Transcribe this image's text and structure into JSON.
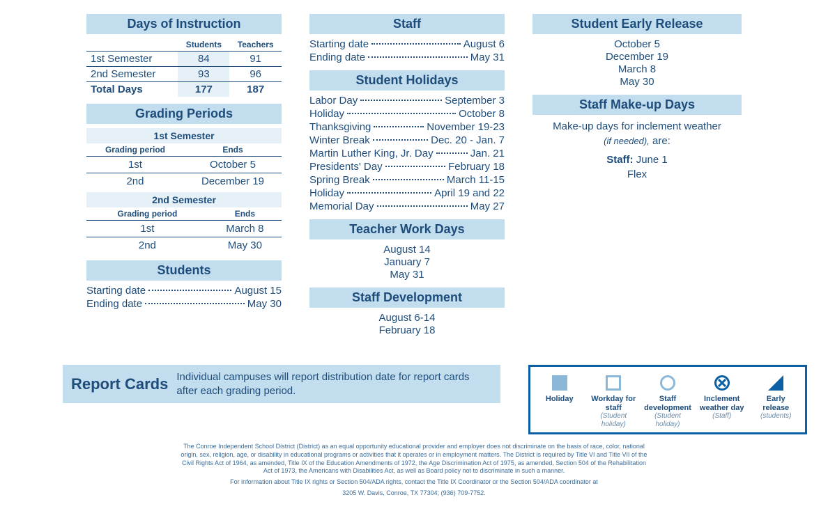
{
  "col1": {
    "days_of_instruction": {
      "title": "Days of Instruction",
      "headers": {
        "c1": "",
        "c2": "Students",
        "c3": "Teachers"
      },
      "rows": [
        {
          "label": "1st Semester",
          "students": "84",
          "teachers": "91"
        },
        {
          "label": "2nd Semester",
          "students": "93",
          "teachers": "96"
        }
      ],
      "total": {
        "label": "Total Days",
        "students": "177",
        "teachers": "187"
      }
    },
    "grading_periods": {
      "title": "Grading Periods",
      "sem1_label": "1st Semester",
      "sem2_label": "2nd Semester",
      "headers": {
        "c1": "Grading period",
        "c2": "Ends"
      },
      "sem1": [
        {
          "period": "1st",
          "ends": "October 5"
        },
        {
          "period": "2nd",
          "ends": "December 19"
        }
      ],
      "sem2": [
        {
          "period": "1st",
          "ends": "March 8"
        },
        {
          "period": "2nd",
          "ends": "May 30"
        }
      ]
    },
    "students": {
      "title": "Students",
      "start": {
        "label": "Starting date",
        "value": "August 15"
      },
      "end": {
        "label": "Ending date",
        "value": "May 30"
      }
    }
  },
  "col2": {
    "staff": {
      "title": "Staff",
      "start": {
        "label": "Starting date",
        "value": "August 6"
      },
      "end": {
        "label": "Ending date",
        "value": "May 31"
      }
    },
    "student_holidays": {
      "title": "Student Holidays",
      "items": [
        {
          "label": "Labor Day",
          "value": "September 3"
        },
        {
          "label": "Holiday",
          "value": "October 8"
        },
        {
          "label": "Thanksgiving",
          "value": "November 19-23"
        },
        {
          "label": "Winter Break",
          "value": "Dec. 20 - Jan. 7"
        },
        {
          "label": "Martin Luther King, Jr. Day",
          "value": "Jan. 21"
        },
        {
          "label": "Presidents' Day",
          "value": "February 18"
        },
        {
          "label": "Spring Break",
          "value": "March 11-15"
        },
        {
          "label": "Holiday",
          "value": "April 19 and 22"
        },
        {
          "label": "Memorial Day",
          "value": "May 27"
        }
      ]
    },
    "teacher_work_days": {
      "title": "Teacher Work Days",
      "items": [
        "August 14",
        "January 7",
        "May 31"
      ]
    },
    "staff_development": {
      "title": "Staff Development",
      "items": [
        "August 6-14",
        "February 18"
      ]
    }
  },
  "col3": {
    "early_release": {
      "title": "Student Early Release",
      "items": [
        "October 5",
        "December 19",
        "March 8",
        "May 30"
      ]
    },
    "makeup_days": {
      "title": "Staff Make-up Days",
      "line1": "Make-up days for inclement weather",
      "line2_a": "(if needed),",
      "line2_b": "are:",
      "staff_label": "Staff:",
      "staff_value": "June 1",
      "flex": "Flex"
    }
  },
  "report_cards": {
    "title": "Report Cards",
    "text": "Individual campuses will report distribution date for report cards after each grading period."
  },
  "legend": {
    "items": [
      {
        "t1": "Holiday",
        "t2": ""
      },
      {
        "t1": "Workday for staff",
        "t2": "(Student holiday)"
      },
      {
        "t1": "Staff development",
        "t2": "(Student holiday)"
      },
      {
        "t1": "Inclement weather day",
        "t2": "(Staff)"
      },
      {
        "t1": "Early release",
        "t2": "(students)"
      }
    ]
  },
  "footer": {
    "p1": "The Conroe Independent School District (District) as an equal opportunity educational provider and employer does not discriminate on the basis of race, color, national origin, sex, religion, age, or disability in educational programs or activities that it operates or in employment matters. The District is required by Title VI and Title VII of the Civil Rights Act of 1964, as amended, Title IX of the Education Amendments of 1972, the Age Discrimination Act of 1975, as amended, Section 504 of the Rehabilitation Act of 1973, the Americans with Disabilities Act, as well as Board policy not to discriminate in such a manner.",
    "p2": "For information about Title IX rights or Section 504/ADA rights, contact the Title IX Coordinator or the Section 504/ADA coordinator at",
    "p3": "3205 W. Davis, Conroe, TX 77304; (936) 709-7752."
  },
  "colors": {
    "header_bg": "#c2dded",
    "text": "#1e4d7b",
    "shade_bg": "#e6f0f7",
    "legend_border": "#0b5fa4",
    "legend_soft": "#8bb8d8"
  }
}
